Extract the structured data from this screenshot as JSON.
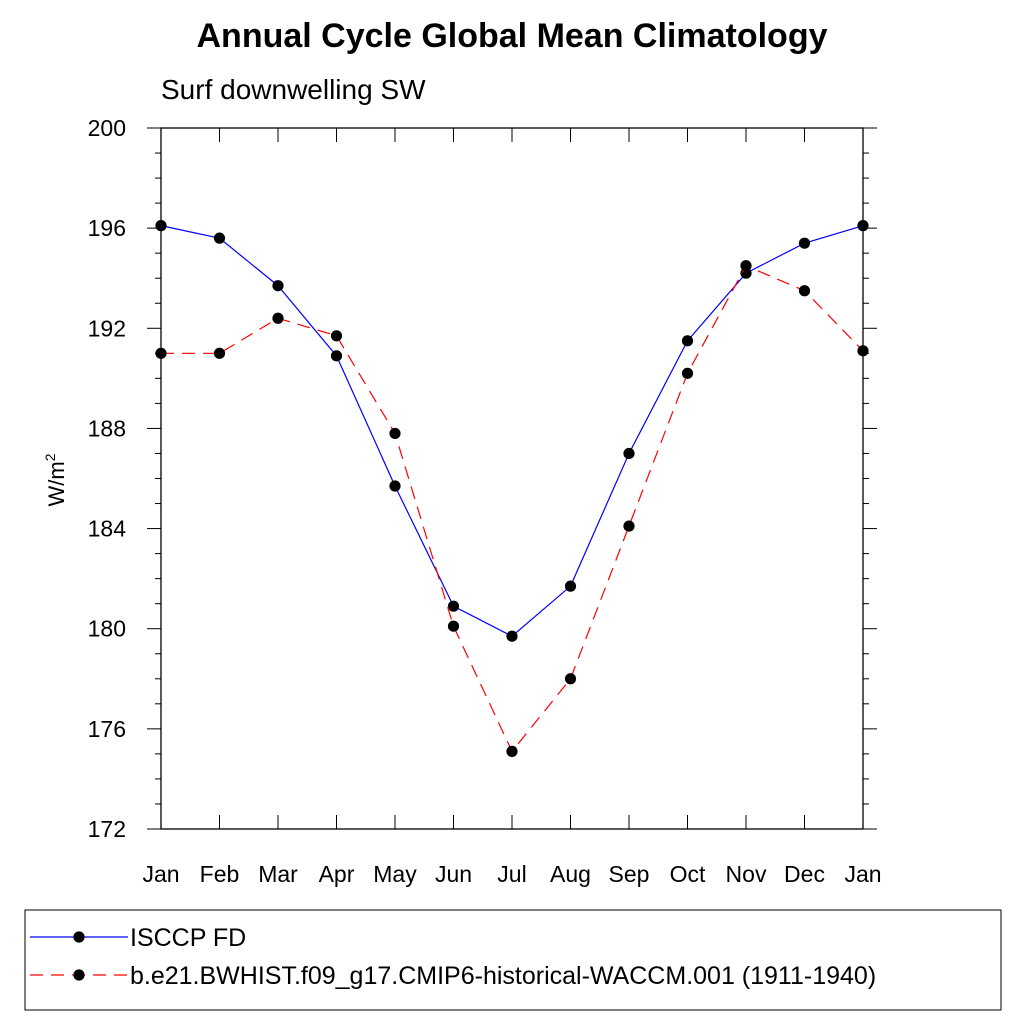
{
  "chart_data": {
    "type": "line",
    "title": "Annual Cycle Global Mean Climatology",
    "subtitle": "Surf downwelling SW",
    "ylabel": "W/m",
    "ylabel_superscript": "2",
    "xlabel": "",
    "categories": [
      "Jan",
      "Feb",
      "Mar",
      "Apr",
      "May",
      "Jun",
      "Jul",
      "Aug",
      "Sep",
      "Oct",
      "Nov",
      "Dec",
      "Jan"
    ],
    "ylim": [
      172,
      200
    ],
    "yticks": [
      172,
      176,
      180,
      184,
      188,
      192,
      196,
      200
    ],
    "grid": false,
    "legend_position": "bottom",
    "series": [
      {
        "name": "ISCCP FD",
        "color": "#0000ff",
        "line_style": "solid",
        "marker": "filled-circle",
        "values": [
          196.1,
          195.6,
          193.7,
          190.9,
          185.7,
          180.9,
          179.7,
          181.7,
          187.0,
          191.5,
          194.2,
          195.4,
          196.1
        ]
      },
      {
        "name": "b.e21.BWHIST.f09_g17.CMIP6-historical-WACCM.001 (1911-1940)",
        "color": "#ff0000",
        "line_style": "dashed",
        "marker": "filled-circle",
        "values": [
          191.0,
          191.0,
          192.4,
          191.7,
          187.8,
          180.1,
          175.1,
          178.0,
          184.1,
          190.2,
          194.5,
          193.5,
          191.1
        ]
      }
    ]
  }
}
